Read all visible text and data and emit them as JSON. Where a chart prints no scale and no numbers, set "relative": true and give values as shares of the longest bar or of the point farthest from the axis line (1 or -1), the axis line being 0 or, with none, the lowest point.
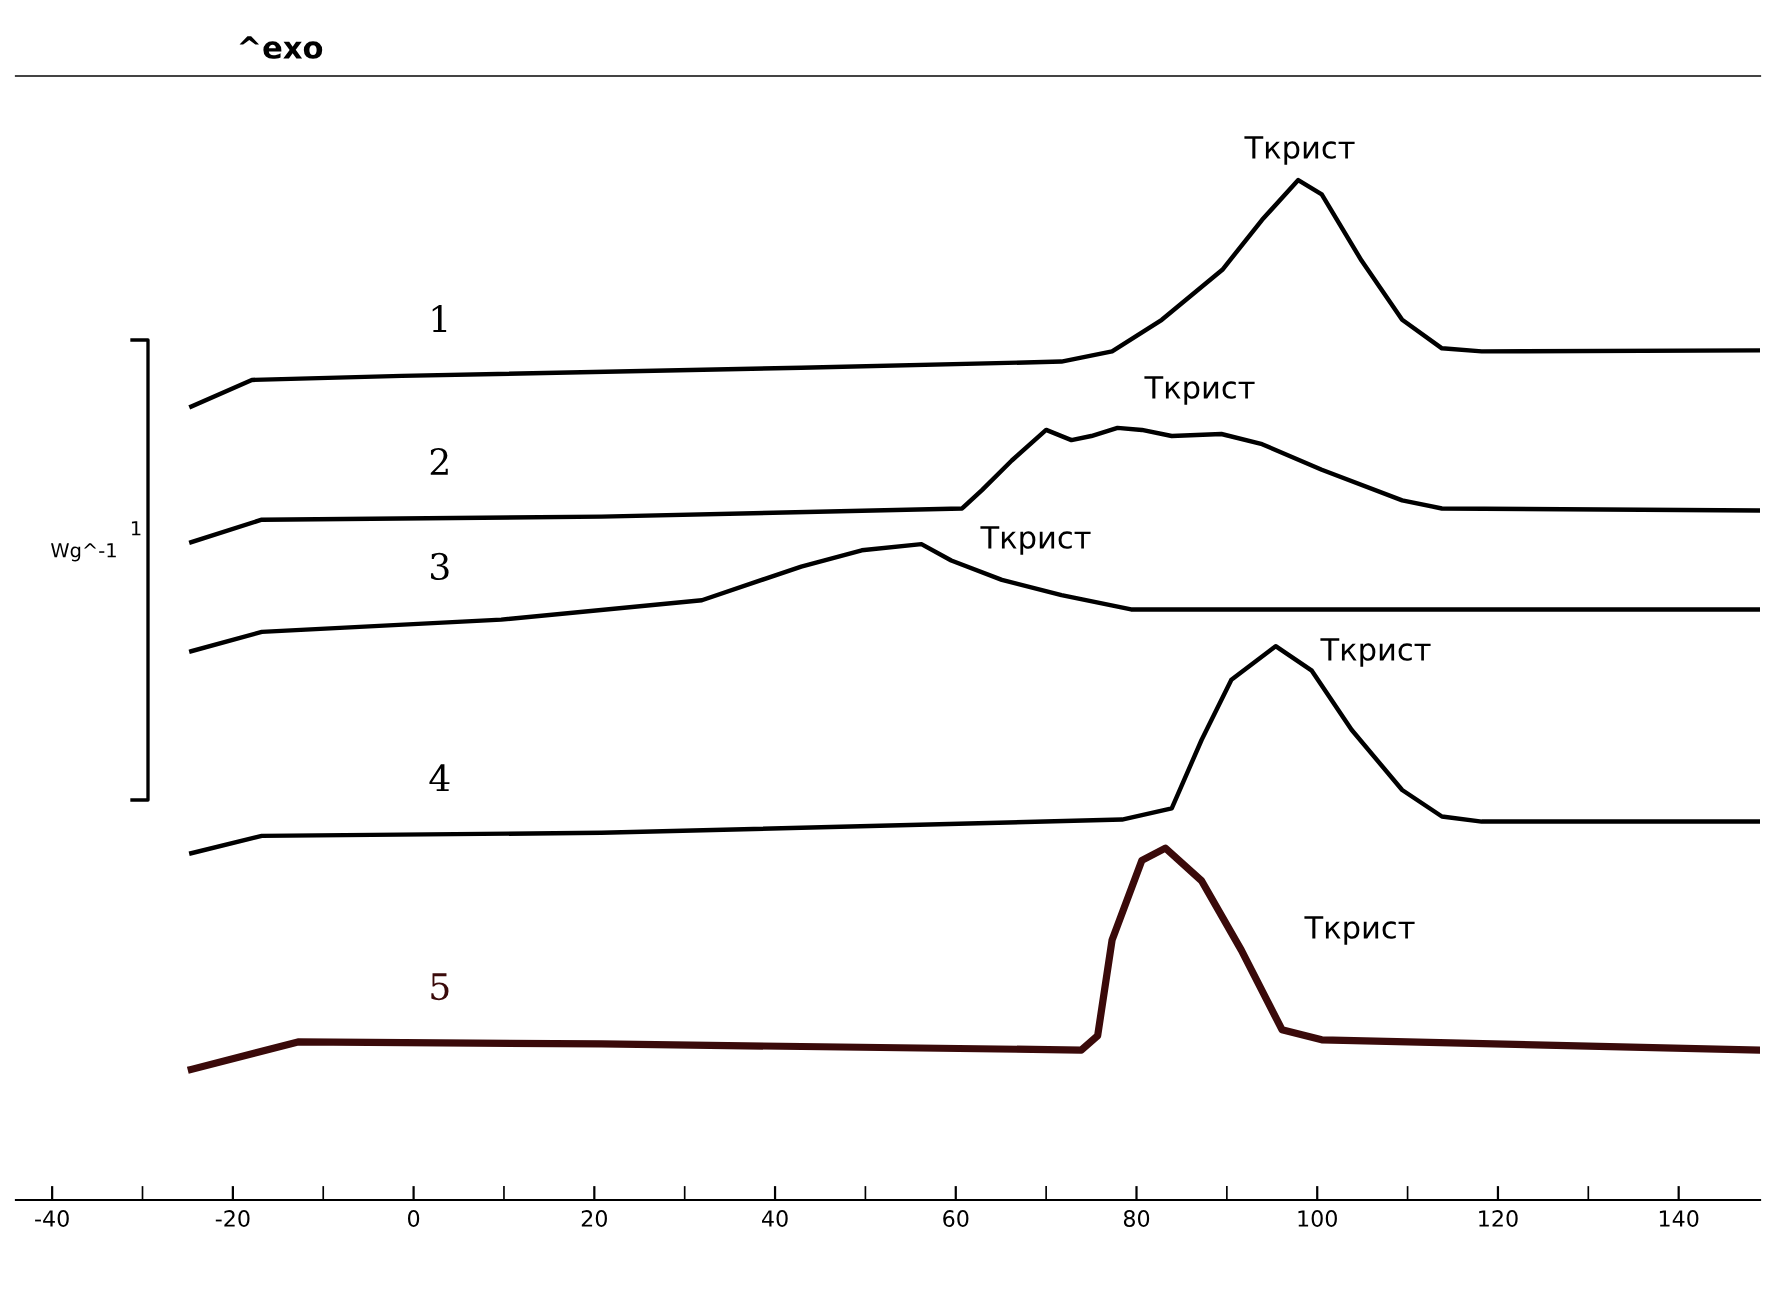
{
  "chart_data": {
    "type": "line",
    "relative": true,
    "legend": false,
    "grid": false,
    "tick_labels": "x",
    "marker": "none",
    "line_style": "solid",
    "xlim": [
      -44,
      149
    ],
    "xticks": [
      -40,
      {
        "value": -30,
        "label": null
      },
      -20,
      {
        "value": -10,
        "label": null
      },
      0,
      {
        "value": 10,
        "label": null
      },
      20,
      {
        "value": 30,
        "label": null
      },
      40,
      {
        "value": 50,
        "label": null
      },
      60,
      {
        "value": 70,
        "label": null
      },
      80,
      {
        "value": 90,
        "label": null
      },
      100,
      {
        "value": 110,
        "label": null
      },
      120,
      {
        "value": 130,
        "label": null
      },
      140
    ],
    "series": [
      {
        "name": "1",
        "color": "#000000",
        "x": [
          -24.6,
          -17.9,
          -1.3,
          42.9,
          71.7,
          77.3,
          82.8,
          89.5,
          93.9,
          97.9,
          100.5,
          104.9,
          109.4,
          113.8,
          118.2,
          149
        ],
        "values": [
          0.778,
          0.804,
          0.808,
          0.816,
          0.822,
          0.832,
          0.863,
          0.912,
          0.961,
          1.0,
          0.986,
          0.921,
          0.863,
          0.835,
          0.832,
          0.833
        ]
      },
      {
        "name": "2",
        "color": "#000000",
        "x": [
          -24.6,
          -16.8,
          20.8,
          60.7,
          62.9,
          66.2,
          70.0,
          72.8,
          75.0,
          77.9,
          80.6,
          83.9,
          89.4,
          93.9,
          100.5,
          109.4,
          113.8,
          149
        ],
        "values": [
          0.645,
          0.667,
          0.67,
          0.678,
          0.696,
          0.725,
          0.755,
          0.745,
          0.749,
          0.757,
          0.755,
          0.749,
          0.751,
          0.741,
          0.716,
          0.686,
          0.678,
          0.676
        ]
      },
      {
        "name": "3",
        "color": "#000000",
        "x": [
          -24.6,
          -16.8,
          9.7,
          31.9,
          42.9,
          49.6,
          56.2,
          59.5,
          65.1,
          71.7,
          79.4,
          149
        ],
        "values": [
          0.538,
          0.557,
          0.569,
          0.588,
          0.621,
          0.637,
          0.643,
          0.627,
          0.608,
          0.593,
          0.579,
          0.579
        ]
      },
      {
        "name": "4",
        "color": "#000000",
        "x": [
          -24.6,
          -16.8,
          20.8,
          78.4,
          83.9,
          87.2,
          90.5,
          95.4,
          99.4,
          103.8,
          109.4,
          113.8,
          118.2,
          149
        ],
        "values": [
          0.34,
          0.357,
          0.36,
          0.373,
          0.384,
          0.451,
          0.51,
          0.543,
          0.519,
          0.461,
          0.402,
          0.376,
          0.371,
          0.371
        ]
      },
      {
        "name": "5",
        "color": "#3a0a0a",
        "x": [
          -24.6,
          -12.8,
          20.8,
          73.9,
          75.7,
          77.3,
          80.6,
          83.2,
          87.2,
          91.6,
          96.1,
          100.5,
          149
        ],
        "values": [
          0.128,
          0.155,
          0.153,
          0.147,
          0.161,
          0.255,
          0.333,
          0.345,
          0.313,
          0.245,
          0.167,
          0.157,
          0.147
        ]
      }
    ],
    "annotations": [
      "^exo",
      "1",
      "Wg^-1",
      "Ткрист",
      "Ткрист",
      "Ткрист",
      "Ткрист",
      "Ткрист"
    ]
  }
}
